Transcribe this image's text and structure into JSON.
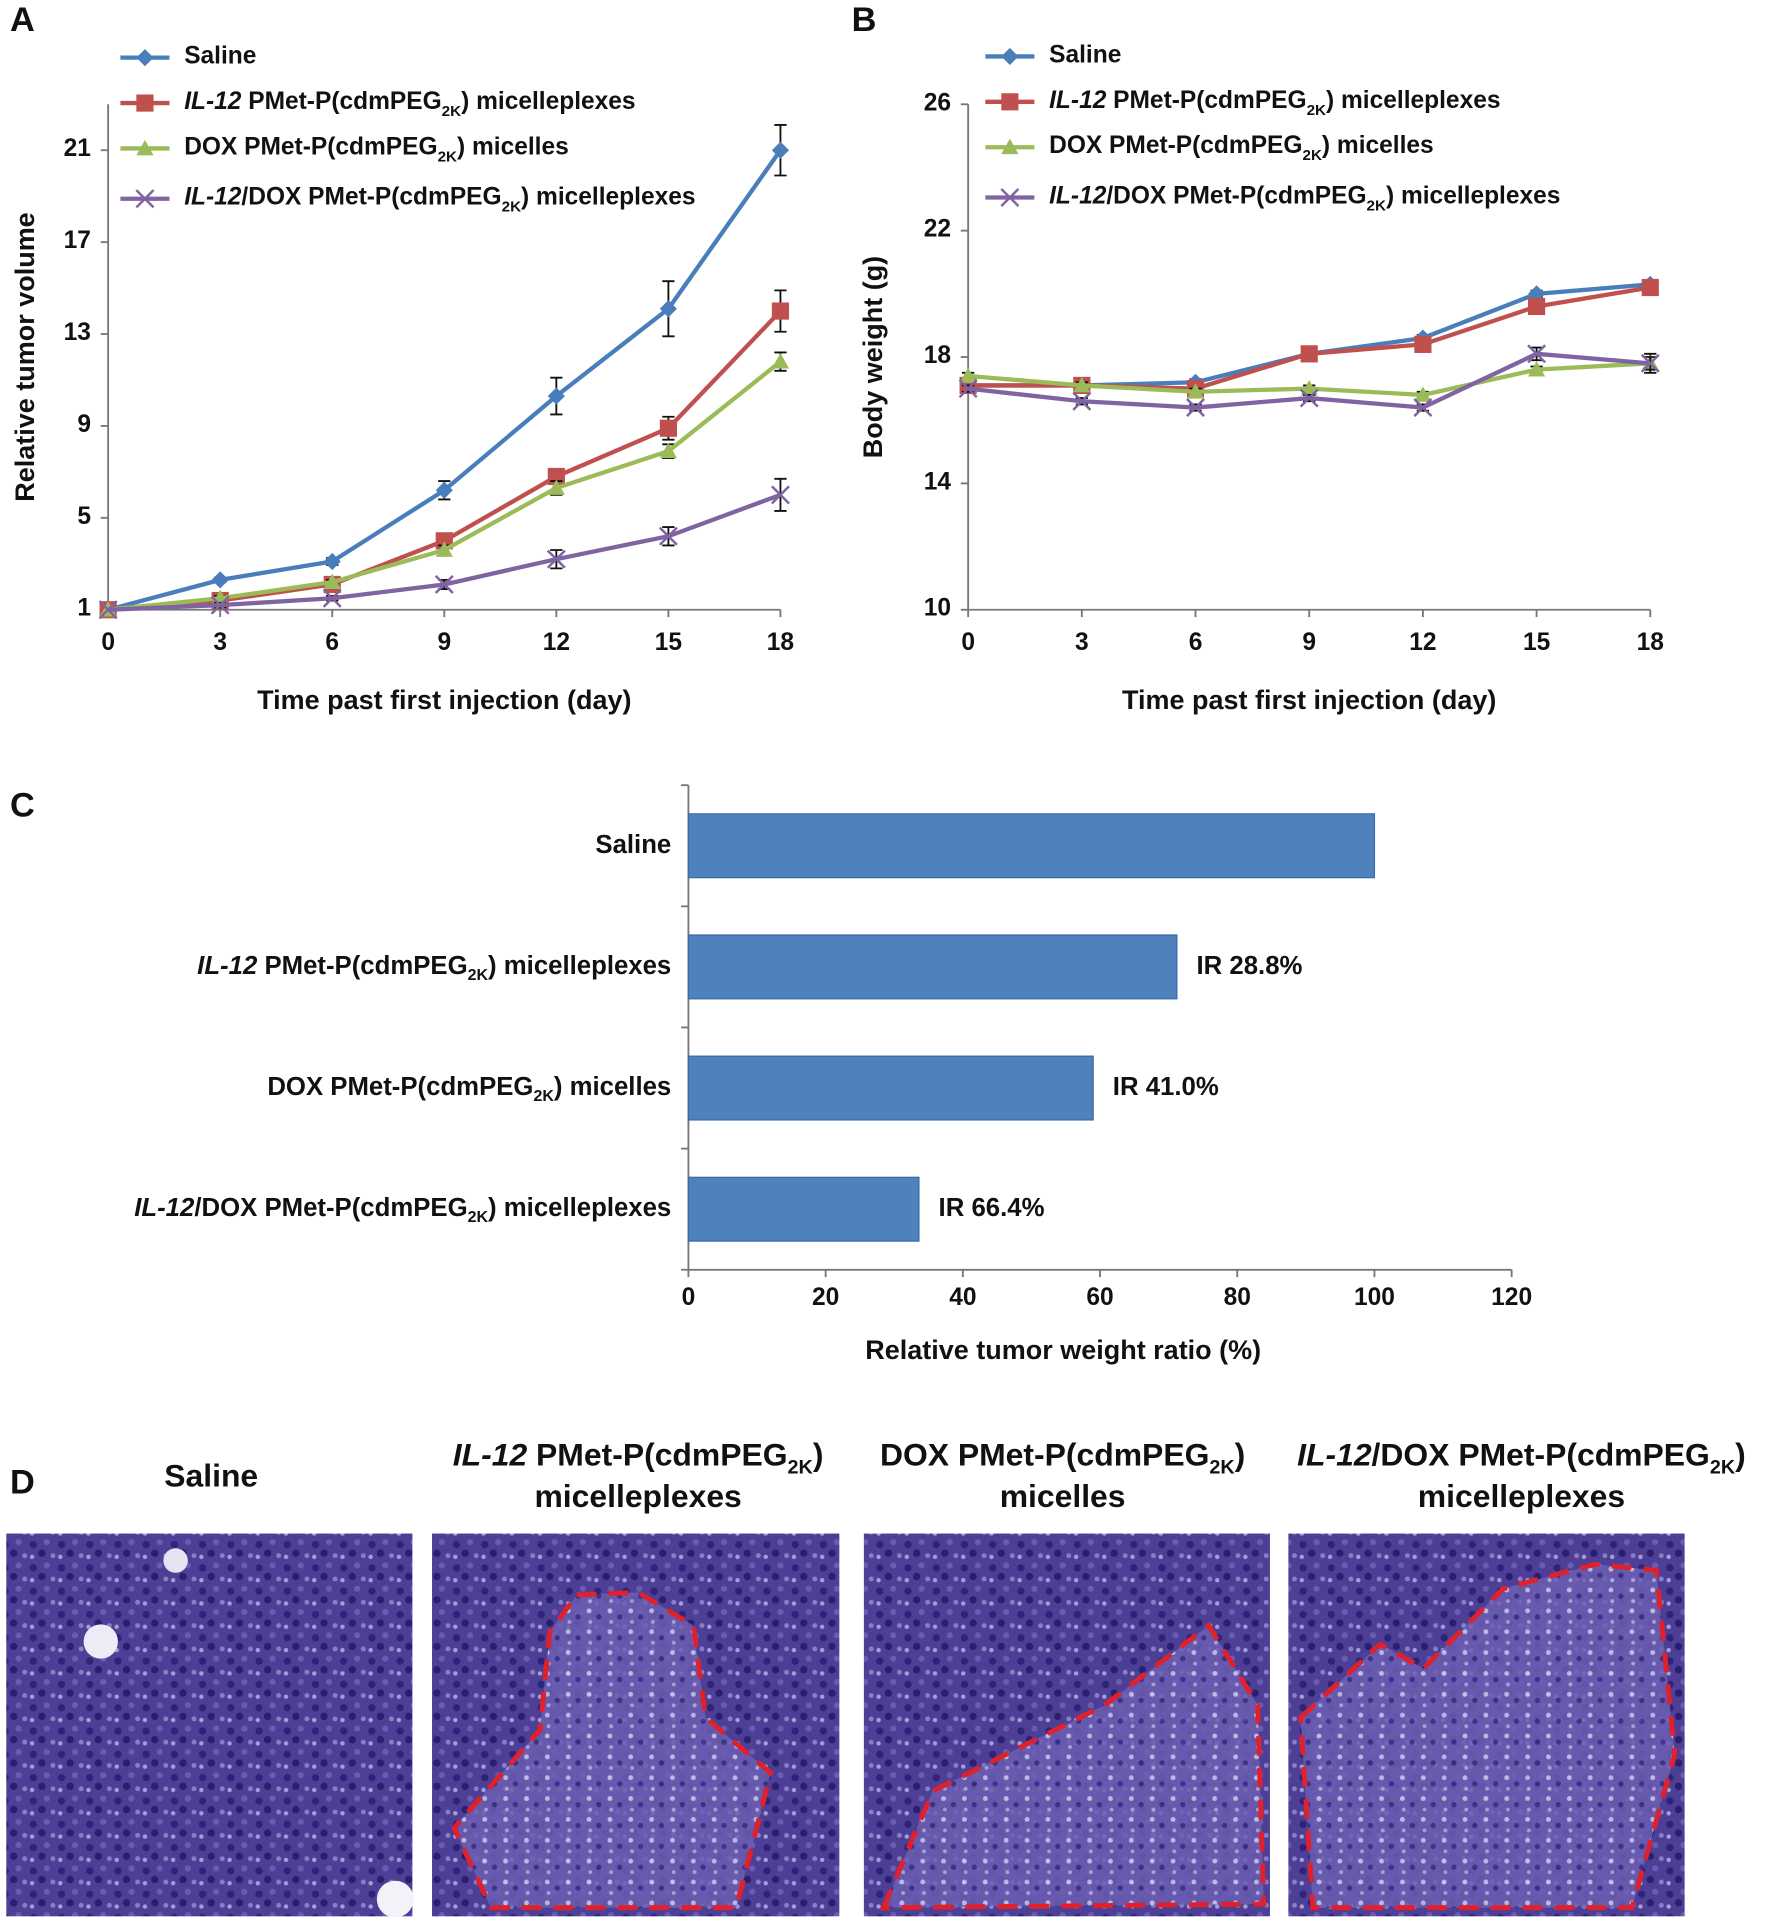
{
  "chart_data": [
    {
      "type": "line",
      "panel": "A",
      "x_label": "Time past first injection (day)",
      "y_label": "Relative tumor volume",
      "x": [
        0,
        3,
        6,
        9,
        12,
        15,
        18
      ],
      "xlim": [
        0,
        18
      ],
      "xticks": [
        0,
        3,
        6,
        9,
        12,
        15,
        18
      ],
      "ylim": [
        1,
        23
      ],
      "yticks": [
        1,
        5,
        9,
        13,
        17,
        21
      ],
      "series": [
        {
          "name": "Saline",
          "color": "#4a7ebb",
          "marker": "diamond",
          "values": [
            1,
            2.3,
            3.1,
            6.2,
            10.3,
            14.1,
            21
          ],
          "errors": [
            0,
            0.1,
            0.15,
            0.4,
            0.8,
            1.2,
            1.1
          ]
        },
        {
          "name": "IL-12 PMet-P(cdmPEG2K) micelleplexes",
          "color": "#c0504d",
          "marker": "square",
          "values": [
            1,
            1.4,
            2.1,
            4.0,
            6.8,
            8.9,
            14.0
          ],
          "errors": [
            0,
            0.1,
            0.15,
            0.2,
            0.3,
            0.5,
            0.9
          ]
        },
        {
          "name": "DOX PMet-P(cdmPEG2K) micelles",
          "color": "#9bbb59",
          "marker": "triangle",
          "values": [
            1,
            1.5,
            2.2,
            3.6,
            6.3,
            7.9,
            11.8
          ],
          "errors": [
            0,
            0.1,
            0.1,
            0.2,
            0.3,
            0.3,
            0.4
          ]
        },
        {
          "name": "IL-12/DOX PMet-P(cdmPEG2K) micelleplexes",
          "color": "#8064a2",
          "marker": "x",
          "values": [
            1,
            1.2,
            1.5,
            2.1,
            3.2,
            4.2,
            6.0
          ],
          "errors": [
            0,
            0.1,
            0.1,
            0.2,
            0.4,
            0.4,
            0.7
          ]
        }
      ]
    },
    {
      "type": "line",
      "panel": "B",
      "x_label": "Time past first injection (day)",
      "y_label": "Body weight (g)",
      "x": [
        0,
        3,
        6,
        9,
        12,
        15,
        18
      ],
      "xlim": [
        0,
        18
      ],
      "xticks": [
        0,
        3,
        6,
        9,
        12,
        15,
        18
      ],
      "ylim": [
        10,
        26
      ],
      "yticks": [
        10,
        14,
        18,
        22,
        26
      ],
      "series": [
        {
          "name": "Saline",
          "color": "#4a7ebb",
          "marker": "diamond",
          "values": [
            17.1,
            17.1,
            17.2,
            18.1,
            18.6,
            20.0,
            20.3
          ],
          "errors": [
            0.1,
            0.1,
            0.1,
            0.1,
            0.1,
            0.1,
            0.1
          ]
        },
        {
          "name": "IL-12 PMet-P(cdmPEG2K) micelleplexes",
          "color": "#c0504d",
          "marker": "square",
          "values": [
            17.1,
            17.1,
            17.0,
            18.1,
            18.4,
            19.6,
            20.2
          ],
          "errors": [
            0.1,
            0.1,
            0.1,
            0.1,
            0.1,
            0.2,
            0.2
          ]
        },
        {
          "name": "DOX PMet-P(cdmPEG2K) micelles",
          "color": "#9bbb59",
          "marker": "triangle",
          "values": [
            17.4,
            17.1,
            16.9,
            17.0,
            16.8,
            17.6,
            17.8
          ],
          "errors": [
            0.1,
            0.1,
            0.1,
            0.1,
            0.1,
            0.1,
            0.3
          ]
        },
        {
          "name": "IL-12/DOX PMet-P(cdmPEG2K) micelleplexes",
          "color": "#8064a2",
          "marker": "x",
          "values": [
            17.0,
            16.6,
            16.4,
            16.7,
            16.4,
            18.1,
            17.8
          ],
          "errors": [
            0.1,
            0.1,
            0.1,
            0.1,
            0.1,
            0.2,
            0.2
          ]
        }
      ]
    },
    {
      "type": "hbar",
      "panel": "C",
      "x_label": "Relative tumor weight ratio (%)",
      "categories": [
        "Saline",
        "IL-12 PMet-P(cdmPEG2K) micelleplexes",
        "DOX PMet-P(cdmPEG2K) micelles",
        "IL-12/DOX PMet-P(cdmPEG2K) micelleplexes"
      ],
      "values": [
        100,
        71.2,
        59.0,
        33.6
      ],
      "color": "#4f81bd",
      "annotations": [
        null,
        "IR 28.8%",
        "IR 41.0%",
        "IR 66.4%"
      ],
      "xlim": [
        0,
        120
      ],
      "xticks": [
        0,
        20,
        40,
        60,
        80,
        100,
        120
      ]
    }
  ],
  "panel_d": {
    "label": "D",
    "images": [
      {
        "title": [
          "Saline"
        ]
      },
      {
        "title": [
          "IL-12 PMet-P(cdmPEG2K)",
          "micelleplexes"
        ]
      },
      {
        "title": [
          "DOX PMet-P(cdmPEG2K)",
          "micelles"
        ]
      },
      {
        "title": [
          "IL-12/DOX PMet-P(cdmPEG2K)",
          "micelleplexes"
        ]
      }
    ]
  }
}
